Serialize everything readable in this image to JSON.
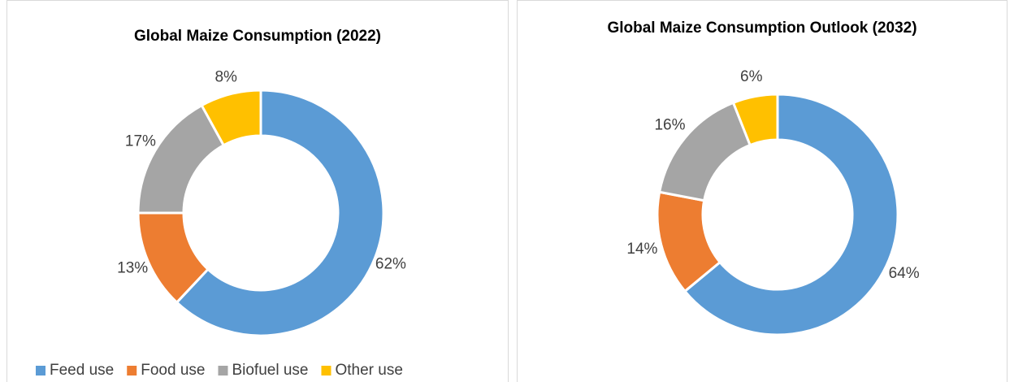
{
  "chart_data": [
    {
      "type": "donut",
      "title": "Global Maize Consumption (2022)",
      "categories": [
        "Feed use",
        "Food use",
        "Biofuel use",
        "Other use"
      ],
      "values": [
        62,
        13,
        17,
        8
      ],
      "value_labels": [
        "62%",
        "13%",
        "17%",
        "8%"
      ],
      "colors": [
        "#5b9bd5",
        "#ed7d31",
        "#a5a5a5",
        "#ffc000"
      ],
      "legend": "bottom"
    },
    {
      "type": "donut",
      "title": "Global Maize Consumption Outlook (2032)",
      "categories": [
        "Feed use",
        "Food use",
        "Biofuel use",
        "Other use"
      ],
      "values": [
        64,
        14,
        16,
        6
      ],
      "value_labels": [
        "64%",
        "14%",
        "16%",
        "6%"
      ],
      "colors": [
        "#5b9bd5",
        "#ed7d31",
        "#a5a5a5",
        "#ffc000"
      ]
    }
  ]
}
